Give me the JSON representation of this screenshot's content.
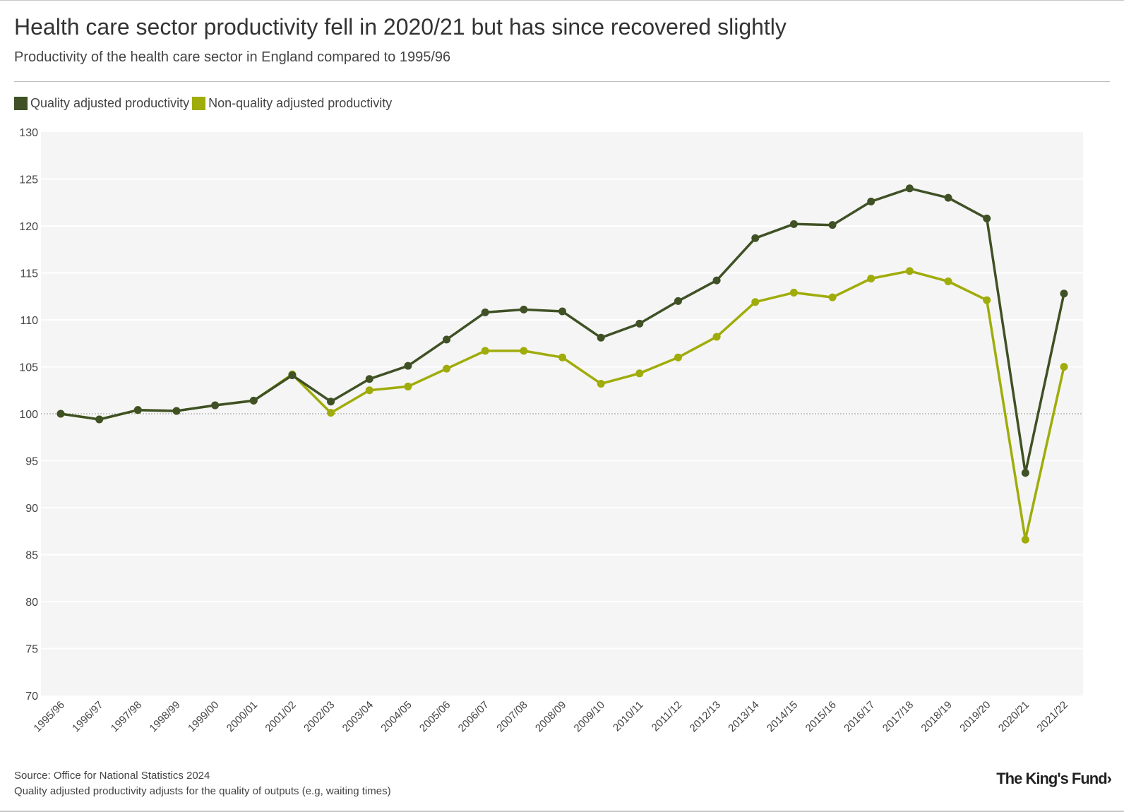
{
  "header": {
    "title": "Health care sector productivity fell in 2020/21 but has since recovered slightly",
    "subtitle": "Productivity of the health care sector in England compared to 1995/96"
  },
  "legend": {
    "quality_label": "Quality adjusted productivity",
    "non_quality_label": "Non-quality adjusted productivity"
  },
  "colors": {
    "quality": "#3f5125",
    "non_quality": "#9fac0a",
    "plot_background": "#f5f5f5",
    "gridline": "#ffffff",
    "baseline": "#888888"
  },
  "chart_data": {
    "type": "line",
    "title": "Health care sector productivity fell in 2020/21 but has since recovered slightly",
    "xlabel": "",
    "ylabel": "",
    "ylim": [
      70,
      130
    ],
    "yticks": [
      70,
      75,
      80,
      85,
      90,
      95,
      100,
      105,
      110,
      115,
      120,
      125,
      130
    ],
    "baseline": 100,
    "categories": [
      "1995/96",
      "1996/97",
      "1997/98",
      "1998/99",
      "1999/00",
      "2000/01",
      "2001/02",
      "2002/03",
      "2003/04",
      "2004/05",
      "2005/06",
      "2006/07",
      "2007/08",
      "2008/09",
      "2009/10",
      "2010/11",
      "2011/12",
      "2012/13",
      "2013/14",
      "2014/15",
      "2015/16",
      "2016/17",
      "2017/18",
      "2018/19",
      "2019/20",
      "2020/21",
      "2021/22"
    ],
    "series": [
      {
        "name": "Non-quality adjusted productivity",
        "values": [
          100.0,
          99.4,
          100.4,
          100.3,
          100.9,
          101.4,
          104.2,
          100.1,
          102.5,
          102.9,
          104.8,
          106.7,
          106.7,
          106.0,
          103.2,
          104.3,
          106.0,
          108.2,
          111.9,
          112.9,
          112.4,
          114.4,
          115.2,
          114.1,
          112.1,
          86.6,
          105.0
        ]
      },
      {
        "name": "Quality adjusted productivity",
        "values": [
          100.0,
          99.4,
          100.4,
          100.3,
          100.9,
          101.4,
          104.1,
          101.3,
          103.7,
          105.1,
          107.9,
          110.8,
          111.1,
          110.9,
          108.1,
          109.6,
          112.0,
          114.2,
          118.7,
          120.2,
          120.1,
          122.6,
          124.0,
          123.0,
          120.8,
          93.7,
          112.8
        ]
      }
    ]
  },
  "footer": {
    "source": "Source: Office for National Statistics 2024",
    "note": "Quality adjusted productivity adjusts for the quality of outputs (e.g, waiting times)",
    "logo": "The King's Fund›"
  }
}
